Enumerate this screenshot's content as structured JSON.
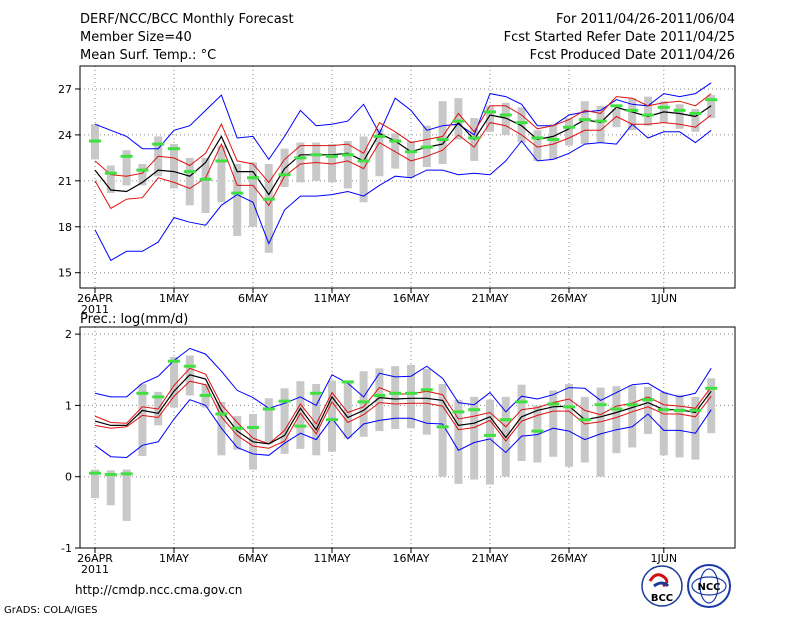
{
  "header": {
    "title": "DERF/NCC/BCC Monthly Forecast",
    "member_size": "Member Size=40",
    "variable": "Mean Surf. Temp.: °C",
    "period": "For 2011/04/26-2011/06/04",
    "fcst_started": "Fcst Started Refer Date 2011/04/25",
    "fcst_produced": "Fcst Produced Date 2011/04/26"
  },
  "footer": {
    "url": "http://cmdp.ncc.cma.gov.cn",
    "grads": "GrADS: COLA/IGES",
    "logo_bcc": "BCC",
    "logo_ncc": "NCC"
  },
  "colors": {
    "max_min": "#0000ff",
    "spread": "#e01010",
    "mean": "#000000",
    "observed": "#40e040",
    "box": "#c8c8c8"
  },
  "chart_data": [
    {
      "type": "line",
      "title": "Mean Surf. Temp.: °C",
      "x_ticks": [
        "26APR",
        "1MAY",
        "6MAY",
        "11MAY",
        "16MAY",
        "21MAY",
        "26MAY",
        "1JUN"
      ],
      "x_tick_days": [
        0,
        5,
        10,
        15,
        20,
        25,
        30,
        36
      ],
      "x_year_label": "2011",
      "ylim": [
        14,
        28.5
      ],
      "y_ticks": [
        15,
        18,
        21,
        24,
        27
      ],
      "grid": true,
      "series": [
        {
          "name": "ensemble-max",
          "values": [
            24.7,
            24.3,
            23.9,
            23.1,
            23.1,
            24.3,
            24.6,
            25.6,
            26.6,
            23.8,
            23.9,
            22.4,
            23.9,
            25.6,
            24.6,
            24.7,
            24.9,
            26.0,
            24.1,
            26.4,
            25.6,
            24.3,
            24.6,
            24.7,
            24.0,
            26.7,
            26.5,
            26.0,
            24.6,
            24.6,
            25.3,
            25.5,
            25.6,
            26.3,
            26.0,
            25.9,
            26.7,
            26.5,
            26.7,
            27.4
          ]
        },
        {
          "name": "spread-upper",
          "values": [
            22.3,
            21.4,
            21.3,
            21.5,
            22.6,
            22.5,
            22.0,
            22.8,
            24.7,
            22.3,
            22.1,
            20.9,
            22.4,
            23.3,
            23.3,
            23.3,
            23.4,
            22.8,
            24.8,
            24.2,
            23.5,
            23.7,
            23.9,
            25.4,
            24.2,
            25.9,
            25.9,
            25.3,
            24.4,
            24.6,
            25.0,
            25.6,
            25.4,
            26.5,
            26.4,
            25.9,
            26.1,
            26.2,
            25.9,
            26.7
          ]
        },
        {
          "name": "ensemble-mean",
          "values": [
            21.7,
            20.4,
            20.3,
            20.9,
            21.7,
            21.6,
            21.3,
            22.2,
            23.9,
            21.6,
            21.6,
            20.1,
            21.8,
            22.7,
            22.7,
            22.7,
            22.8,
            22.3,
            24.1,
            23.6,
            22.9,
            23.2,
            23.4,
            24.8,
            23.7,
            25.3,
            25.1,
            24.6,
            23.7,
            23.9,
            24.4,
            25.0,
            24.8,
            25.8,
            25.5,
            25.2,
            25.5,
            25.4,
            25.2,
            25.9
          ]
        },
        {
          "name": "spread-lower",
          "values": [
            21.0,
            19.2,
            19.8,
            19.9,
            21.2,
            20.9,
            20.5,
            21.2,
            23.4,
            20.7,
            20.7,
            19.4,
            21.3,
            22.1,
            22.2,
            22.1,
            22.3,
            21.8,
            23.5,
            22.9,
            22.3,
            22.6,
            23.0,
            24.0,
            23.2,
            24.8,
            24.6,
            24.0,
            23.2,
            23.4,
            23.8,
            24.3,
            24.3,
            25.2,
            24.7,
            24.7,
            24.8,
            24.7,
            24.5,
            25.3
          ]
        },
        {
          "name": "ensemble-min",
          "values": [
            17.8,
            15.8,
            16.4,
            16.4,
            17.0,
            18.6,
            18.3,
            18.1,
            19.4,
            20.1,
            19.6,
            16.9,
            19.1,
            20.0,
            20.0,
            20.1,
            20.3,
            20.0,
            20.7,
            21.3,
            21.2,
            21.7,
            21.7,
            21.4,
            21.5,
            21.4,
            22.3,
            23.6,
            22.3,
            22.4,
            22.8,
            23.4,
            23.5,
            23.4,
            24.7,
            23.8,
            24.2,
            24.2,
            23.5,
            24.3
          ]
        },
        {
          "name": "observed",
          "values": [
            23.6,
            21.5,
            22.6,
            21.7,
            23.4,
            23.1,
            21.6,
            21.1,
            22.3,
            20.2,
            21.2,
            19.8,
            21.4,
            22.5,
            22.7,
            22.6,
            22.7,
            22.3,
            23.9,
            23.6,
            22.9,
            23.2,
            23.7,
            24.9,
            23.8,
            25.5,
            25.3,
            24.8,
            23.8,
            23.7,
            24.5,
            25.0,
            24.9,
            25.9,
            25.6,
            25.3,
            25.8,
            25.6,
            25.4,
            26.3
          ]
        },
        {
          "name": "box-high",
          "values": [
            24.7,
            22.0,
            23.0,
            22.1,
            23.9,
            23.4,
            22.5,
            22.5,
            23.3,
            22.1,
            22.2,
            22.1,
            23.1,
            23.5,
            23.5,
            23.4,
            23.6,
            23.9,
            24.4,
            24.1,
            23.6,
            24.6,
            26.2,
            26.4,
            25.1,
            25.9,
            26.1,
            25.8,
            24.3,
            24.7,
            25.1,
            26.2,
            25.9,
            25.7,
            26.4,
            26.5,
            26.2,
            26.0,
            25.7,
            26.6
          ]
        },
        {
          "name": "box-low",
          "values": [
            22.4,
            20.2,
            20.7,
            20.7,
            21.3,
            20.5,
            19.4,
            18.9,
            19.6,
            17.4,
            18.0,
            16.3,
            20.6,
            20.9,
            21.0,
            20.9,
            20.5,
            19.6,
            21.3,
            21.8,
            21.2,
            21.9,
            22.1,
            23.7,
            22.3,
            24.2,
            24.0,
            23.5,
            22.3,
            22.4,
            23.3,
            23.4,
            23.5,
            24.5,
            24.3,
            24.6,
            24.8,
            24.4,
            24.2,
            25.1
          ]
        }
      ]
    },
    {
      "type": "line",
      "title": "Prec.: log(mm/d)",
      "x_ticks": [
        "26APR",
        "1MAY",
        "6MAY",
        "11MAY",
        "16MAY",
        "21MAY",
        "26MAY",
        "1JUN"
      ],
      "x_tick_days": [
        0,
        5,
        10,
        15,
        20,
        25,
        30,
        36
      ],
      "x_year_label": "2011",
      "ylim": [
        -1,
        2.1
      ],
      "y_ticks": [
        -1,
        0,
        1,
        2
      ],
      "grid": true,
      "series": [
        {
          "name": "ensemble-max",
          "values": [
            1.17,
            1.12,
            1.12,
            1.31,
            1.41,
            1.63,
            1.8,
            1.72,
            1.48,
            1.21,
            1.11,
            0.96,
            1.03,
            1.12,
            1.0,
            1.43,
            1.31,
            1.12,
            1.45,
            1.4,
            1.41,
            1.55,
            1.38,
            1.04,
            1.01,
            1.18,
            0.91,
            1.13,
            1.09,
            1.15,
            1.25,
            1.24,
            1.07,
            1.18,
            1.29,
            1.31,
            1.18,
            1.12,
            1.17,
            1.52
          ]
        },
        {
          "name": "spread-upper",
          "values": [
            0.85,
            0.76,
            0.75,
            0.98,
            0.95,
            1.28,
            1.52,
            1.44,
            1.01,
            0.76,
            0.54,
            0.46,
            0.65,
            1.02,
            0.74,
            1.18,
            0.9,
            0.98,
            1.25,
            1.16,
            1.16,
            1.2,
            1.15,
            0.81,
            0.85,
            0.9,
            0.7,
            0.94,
            0.97,
            1.04,
            1.09,
            0.93,
            0.87,
            0.99,
            1.03,
            1.12,
            1.01,
            0.99,
            0.96,
            1.26
          ]
        },
        {
          "name": "ensemble-mean",
          "values": [
            0.78,
            0.72,
            0.72,
            0.93,
            0.89,
            1.2,
            1.43,
            1.37,
            0.93,
            0.64,
            0.49,
            0.46,
            0.58,
            0.96,
            0.66,
            1.12,
            0.83,
            0.93,
            1.11,
            1.09,
            1.1,
            1.1,
            1.07,
            0.72,
            0.75,
            0.84,
            0.55,
            0.84,
            0.93,
            0.98,
            0.99,
            0.8,
            0.84,
            0.9,
            0.97,
            1.04,
            0.94,
            0.94,
            0.9,
            1.2
          ]
        },
        {
          "name": "spread-lower",
          "values": [
            0.72,
            0.68,
            0.7,
            0.86,
            0.83,
            1.13,
            1.34,
            1.29,
            0.84,
            0.58,
            0.43,
            0.4,
            0.5,
            0.89,
            0.6,
            1.05,
            0.76,
            0.87,
            1.04,
            1.02,
            1.03,
            1.03,
            0.99,
            0.66,
            0.69,
            0.79,
            0.5,
            0.78,
            0.86,
            0.92,
            0.92,
            0.74,
            0.77,
            0.83,
            0.91,
            0.98,
            0.88,
            0.88,
            0.84,
            1.13
          ]
        },
        {
          "name": "ensemble-min",
          "values": [
            0.44,
            0.28,
            0.27,
            0.44,
            0.49,
            0.81,
            1.08,
            1.0,
            0.68,
            0.41,
            0.32,
            0.3,
            0.47,
            0.61,
            0.52,
            0.82,
            0.53,
            0.74,
            0.79,
            0.82,
            0.82,
            0.75,
            0.74,
            0.37,
            0.48,
            0.53,
            0.34,
            0.57,
            0.59,
            0.68,
            0.64,
            0.52,
            0.6,
            0.66,
            0.7,
            0.88,
            0.65,
            0.65,
            0.61,
            0.94
          ]
        },
        {
          "name": "observed",
          "values": [
            0.05,
            0.03,
            0.04,
            1.17,
            1.12,
            1.62,
            1.55,
            1.14,
            0.88,
            0.68,
            0.69,
            0.95,
            1.06,
            0.71,
            1.17,
            0.8,
            1.33,
            1.05,
            1.14,
            1.17,
            1.17,
            1.22,
            0.7,
            0.91,
            0.94,
            0.58,
            0.8,
            1.05,
            0.64,
            1.02,
            0.98,
            0.8,
            1.01,
            0.95,
            1.01,
            1.08,
            0.94,
            0.93,
            0.93,
            1.24
          ]
        },
        {
          "name": "box-high",
          "values": [
            0.1,
            0.09,
            0.1,
            1.3,
            1.19,
            1.68,
            1.7,
            1.3,
            1.05,
            0.85,
            0.88,
            1.1,
            1.24,
            1.34,
            1.3,
            1.35,
            1.33,
            1.48,
            1.52,
            1.55,
            1.57,
            1.51,
            1.3,
            1.08,
            1.12,
            1.08,
            1.12,
            1.29,
            1.0,
            1.21,
            1.3,
            1.12,
            1.25,
            1.27,
            1.28,
            1.26,
            1.19,
            1.15,
            1.12,
            1.38
          ]
        },
        {
          "name": "box-low",
          "values": [
            -0.3,
            -0.4,
            -0.62,
            0.29,
            0.72,
            0.97,
            1.14,
            0.97,
            0.3,
            0.38,
            0.1,
            0.46,
            0.32,
            0.39,
            0.3,
            0.35,
            0.54,
            0.56,
            0.64,
            0.67,
            0.68,
            0.59,
            0.0,
            -0.1,
            -0.04,
            -0.11,
            0.0,
            0.22,
            0.2,
            0.28,
            0.14,
            0.2,
            0.0,
            0.33,
            0.41,
            0.6,
            0.3,
            0.27,
            0.24,
            0.61
          ]
        }
      ]
    }
  ]
}
